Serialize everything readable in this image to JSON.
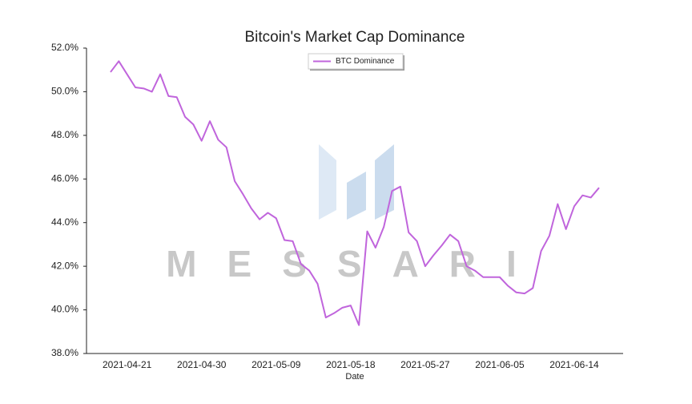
{
  "chart_data": {
    "type": "line",
    "title": "Bitcoin's Market Cap Dominance",
    "x_label": "Date",
    "watermark": "MESSARI",
    "legend": "upper center",
    "categories": [
      "2021-04-19",
      "2021-04-20",
      "2021-04-21",
      "2021-04-22",
      "2021-04-23",
      "2021-04-24",
      "2021-04-25",
      "2021-04-26",
      "2021-04-27",
      "2021-04-28",
      "2021-04-29",
      "2021-04-30",
      "2021-05-01",
      "2021-05-02",
      "2021-05-03",
      "2021-05-04",
      "2021-05-05",
      "2021-05-06",
      "2021-05-07",
      "2021-05-08",
      "2021-05-09",
      "2021-05-10",
      "2021-05-11",
      "2021-05-12",
      "2021-05-13",
      "2021-05-14",
      "2021-05-15",
      "2021-05-16",
      "2021-05-17",
      "2021-05-18",
      "2021-05-19",
      "2021-05-20",
      "2021-05-21",
      "2021-05-22",
      "2021-05-23",
      "2021-05-24",
      "2021-05-25",
      "2021-05-26",
      "2021-05-27",
      "2021-05-28",
      "2021-05-29",
      "2021-05-30",
      "2021-05-31",
      "2021-06-01",
      "2021-06-02",
      "2021-06-03",
      "2021-06-04",
      "2021-06-05",
      "2021-06-06",
      "2021-06-07",
      "2021-06-08",
      "2021-06-09",
      "2021-06-10",
      "2021-06-11",
      "2021-06-12",
      "2021-06-13",
      "2021-06-14",
      "2021-06-15",
      "2021-06-16",
      "2021-06-17"
    ],
    "series": [
      {
        "name": "BTC Dominance",
        "color": "#c065dc",
        "values": [
          50.9,
          51.4,
          50.8,
          50.2,
          50.15,
          50.0,
          50.8,
          49.8,
          49.75,
          48.85,
          48.5,
          47.75,
          48.65,
          47.8,
          47.45,
          45.9,
          45.3,
          44.65,
          44.15,
          44.45,
          44.2,
          43.2,
          43.15,
          42.1,
          41.8,
          41.2,
          39.65,
          39.85,
          40.1,
          40.2,
          39.3,
          43.6,
          42.85,
          43.8,
          45.45,
          45.65,
          43.55,
          43.15,
          42.0,
          42.5,
          42.95,
          43.45,
          43.15,
          42.0,
          41.8,
          41.5,
          41.5,
          41.5,
          41.1,
          40.8,
          40.75,
          41.0,
          42.7,
          43.4,
          44.85,
          43.7,
          44.75,
          45.25,
          45.15,
          45.6
        ]
      }
    ],
    "xticks": [
      "2021-04-21",
      "2021-04-30",
      "2021-05-09",
      "2021-05-18",
      "2021-05-27",
      "2021-06-05",
      "2021-06-14"
    ],
    "ylim": [
      38,
      52
    ],
    "yticks": [
      {
        "value": 38,
        "label": "38.0%"
      },
      {
        "value": 40,
        "label": "40.0%"
      },
      {
        "value": 42,
        "label": "42.0%"
      },
      {
        "value": 44,
        "label": "44.0%"
      },
      {
        "value": 46,
        "label": "46.0%"
      },
      {
        "value": 48,
        "label": "48.0%"
      },
      {
        "value": 50,
        "label": "50.0%"
      },
      {
        "value": 52,
        "label": "52.0%"
      }
    ],
    "grid": false
  }
}
